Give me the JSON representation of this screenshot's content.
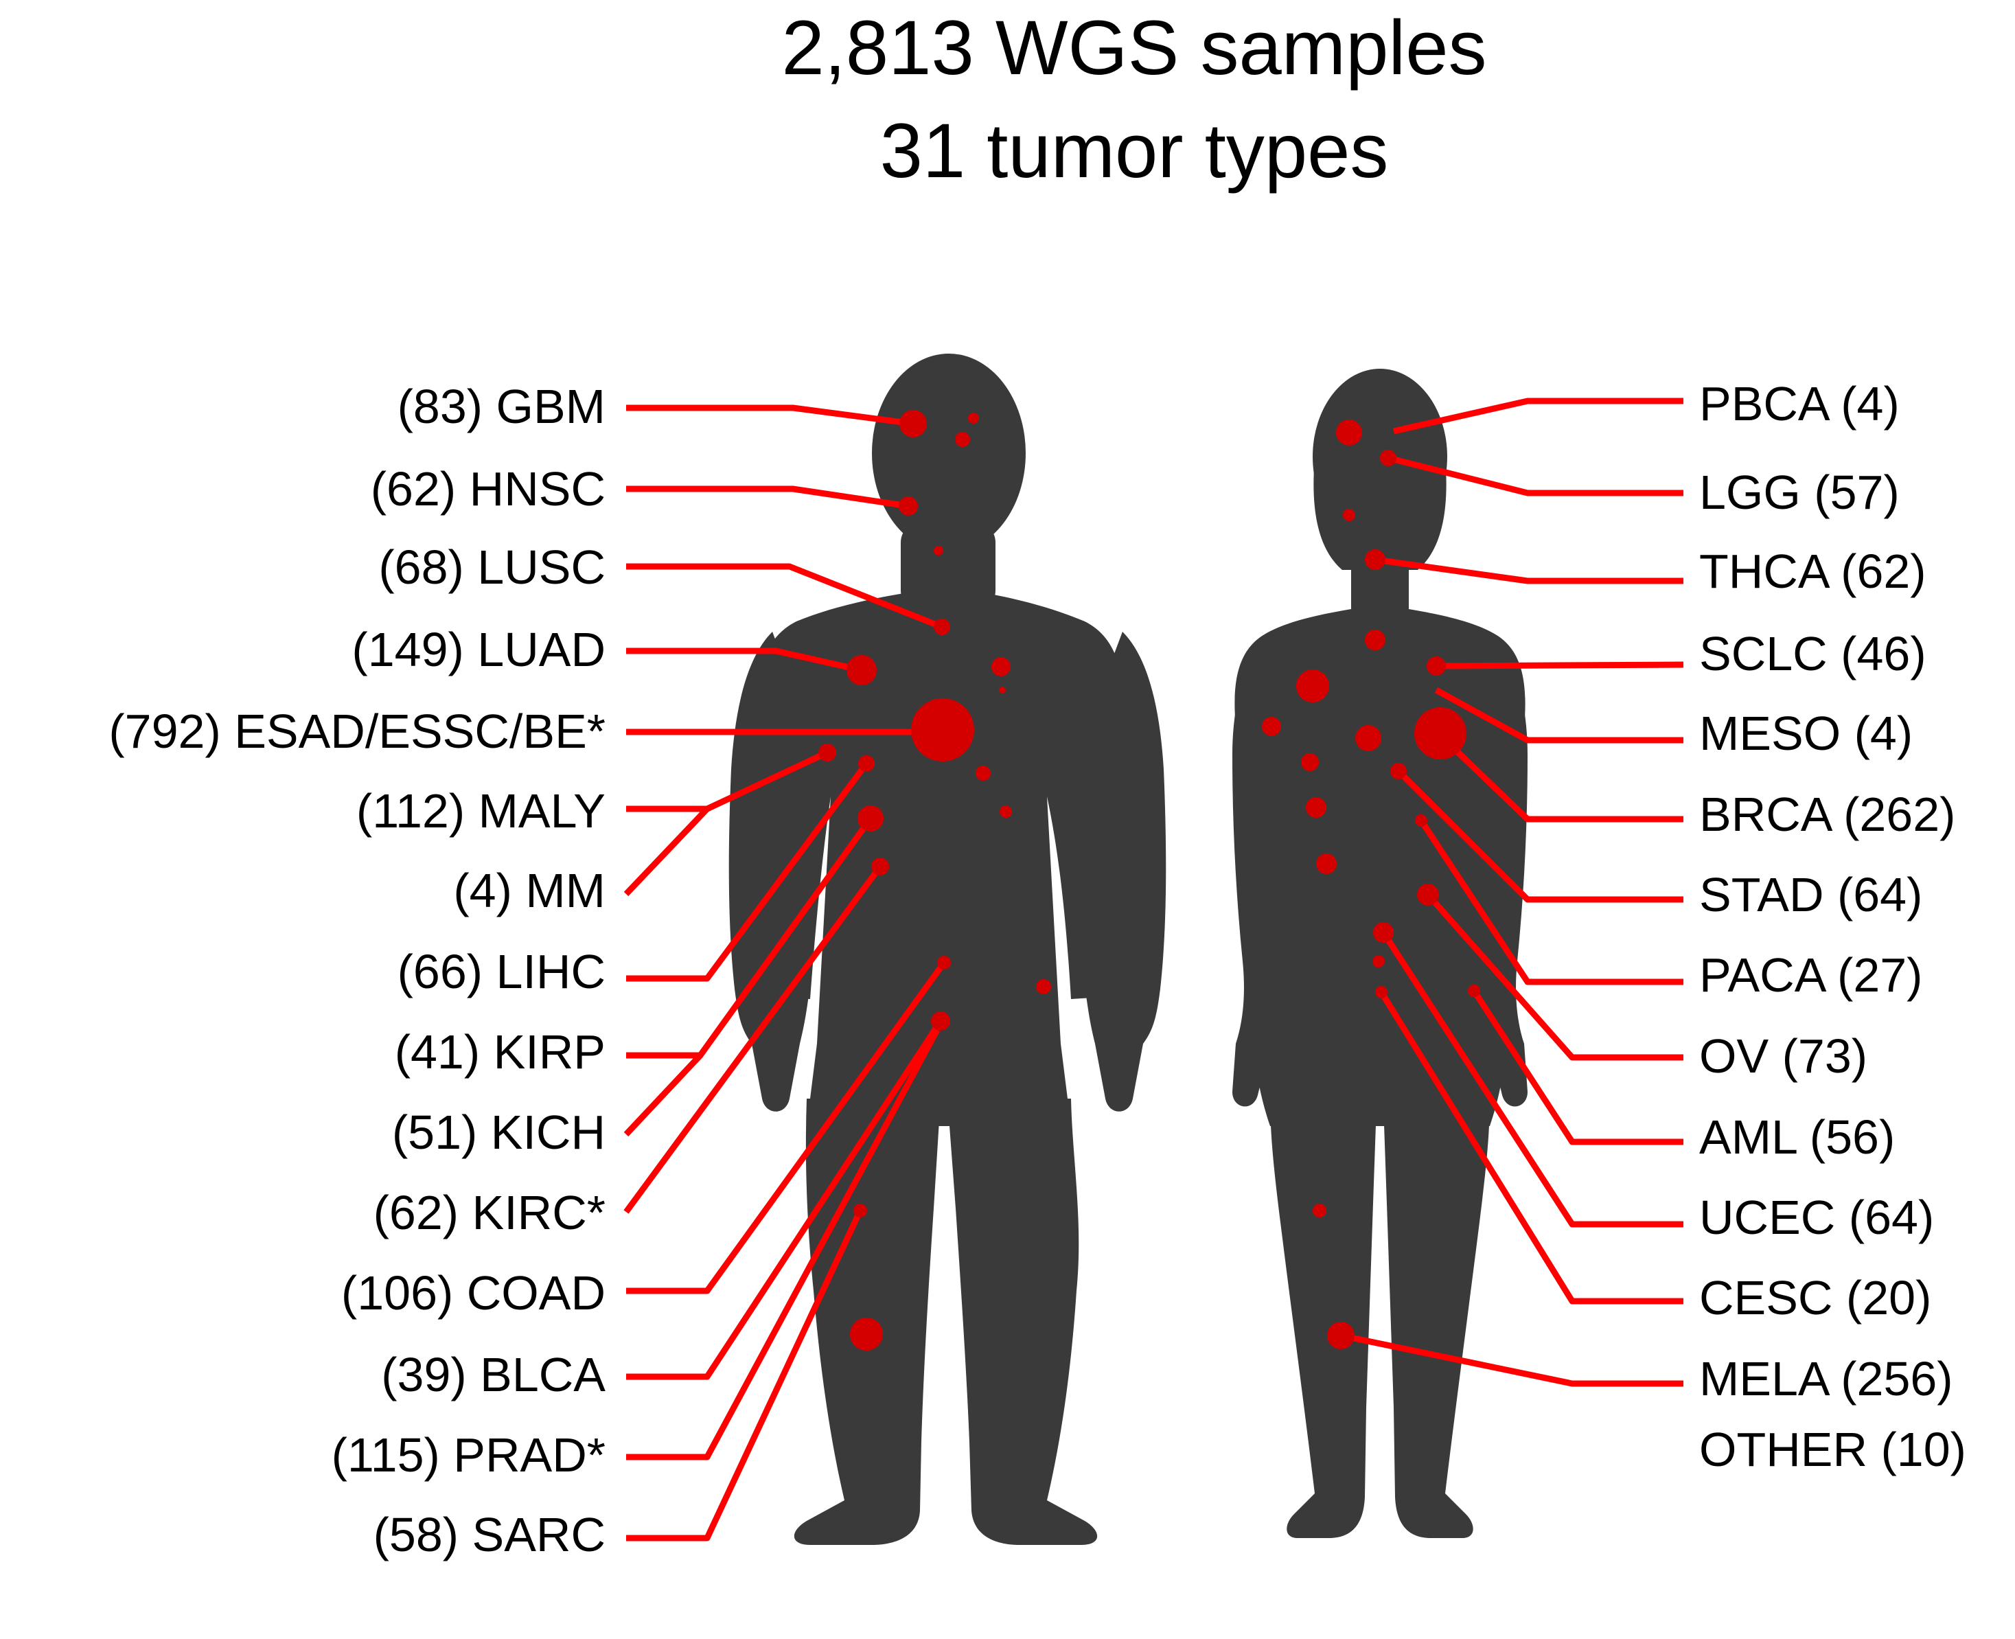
{
  "title": {
    "line1": "2,813 WGS samples",
    "line2": "31 tumor types"
  },
  "colors": {
    "silhouette": "#3a3a3a",
    "marker": "#d40000",
    "leader": "#ff0000",
    "text": "#000000"
  },
  "left_labels": [
    {
      "id": "gbm",
      "text": "(83) GBM"
    },
    {
      "id": "hnsc",
      "text": "(62) HNSC"
    },
    {
      "id": "lusc",
      "text": "(68) LUSC"
    },
    {
      "id": "luad",
      "text": "(149) LUAD"
    },
    {
      "id": "esad",
      "text": "(792) ESAD/ESSC/BE*"
    },
    {
      "id": "maly",
      "text": "(112) MALY"
    },
    {
      "id": "mm",
      "text": "(4) MM"
    },
    {
      "id": "lihc",
      "text": "(66) LIHC"
    },
    {
      "id": "kirp",
      "text": "(41) KIRP"
    },
    {
      "id": "kich",
      "text": "(51) KICH"
    },
    {
      "id": "kirc",
      "text": "(62) KIRC*"
    },
    {
      "id": "coad",
      "text": "(106) COAD"
    },
    {
      "id": "blca",
      "text": "(39) BLCA"
    },
    {
      "id": "prad",
      "text": "(115) PRAD*"
    },
    {
      "id": "sarc",
      "text": "(58) SARC"
    }
  ],
  "right_labels": [
    {
      "id": "pbca",
      "text": "PBCA (4)"
    },
    {
      "id": "lgg",
      "text": "LGG (57)"
    },
    {
      "id": "thca",
      "text": "THCA (62)"
    },
    {
      "id": "sclc",
      "text": "SCLC (46)"
    },
    {
      "id": "meso",
      "text": "MESO (4)"
    },
    {
      "id": "brca",
      "text": "BRCA (262)"
    },
    {
      "id": "stad",
      "text": "STAD (64)"
    },
    {
      "id": "paca",
      "text": "PACA (27)"
    },
    {
      "id": "ov",
      "text": "OV (73)"
    },
    {
      "id": "aml",
      "text": "AML (56)"
    },
    {
      "id": "ucec",
      "text": "UCEC (64)"
    },
    {
      "id": "cesc",
      "text": "CESC (20)"
    },
    {
      "id": "mela",
      "text": "MELA (256)"
    },
    {
      "id": "other",
      "text": "OTHER (10)"
    }
  ]
}
